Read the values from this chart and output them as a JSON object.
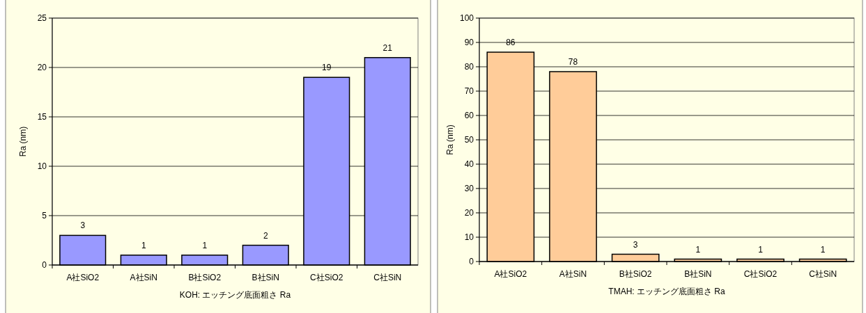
{
  "chart_data": [
    {
      "type": "bar",
      "xlabel": "KOH: エッチング底面粗さ Ra",
      "ylabel": "Ra (nm)",
      "categories": [
        "A社SiO2",
        "A社SiN",
        "B社SiO2",
        "B社SiN",
        "C社SiO2",
        "C社SiN"
      ],
      "values": [
        3,
        1,
        1,
        2,
        19,
        21
      ],
      "color": "#9999ff",
      "ylim": [
        0,
        25
      ],
      "yticks": [
        0,
        5,
        10,
        15,
        20,
        25
      ],
      "grid": "y",
      "data_labels": true
    },
    {
      "type": "bar",
      "xlabel": "TMAH: エッチング底面粗さ Ra",
      "ylabel": "Ra (nm)",
      "categories": [
        "A社SiO2",
        "A社SiN",
        "B社SiO2",
        "B社SiN",
        "C社SiO2",
        "C社SiN"
      ],
      "values": [
        86,
        78,
        3,
        1,
        1,
        1
      ],
      "color": "#ffcc99",
      "ylim": [
        0,
        100
      ],
      "yticks": [
        0,
        10,
        20,
        30,
        40,
        50,
        60,
        70,
        80,
        90,
        100
      ],
      "grid": "y",
      "data_labels": true
    }
  ]
}
